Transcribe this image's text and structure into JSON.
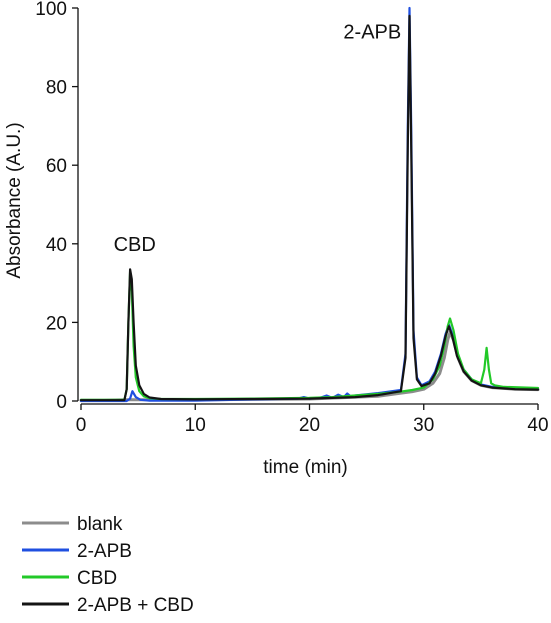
{
  "chart_data": {
    "type": "line",
    "xlabel": "time (min)",
    "ylabel": "Absorbance (A.U.)",
    "xlim": [
      0,
      40
    ],
    "ylim": [
      0,
      100
    ],
    "xticks": [
      0,
      10,
      20,
      30,
      40
    ],
    "yticks": [
      0,
      20,
      40,
      60,
      80,
      100
    ],
    "grid": false,
    "legend_position": "bottom-left",
    "annotations": [
      {
        "text": "CBD",
        "x": 4.7,
        "y": 40
      },
      {
        "text": "2-APB",
        "x": 25.5,
        "y": 94
      }
    ],
    "series": [
      {
        "name": "blank",
        "color": "#8c8c8c",
        "x": [
          0,
          2,
          4,
          6,
          10,
          20,
          26,
          28,
          29,
          30,
          30.8,
          31.4,
          31.8,
          32.1,
          32.3,
          32.6,
          33,
          33.5,
          34.2,
          35,
          36,
          38,
          40
        ],
        "y": [
          0.2,
          0.2,
          0.3,
          0.3,
          0.3,
          0.5,
          1.2,
          2.0,
          2.4,
          3.0,
          4.5,
          7.0,
          11.0,
          15.5,
          17.5,
          15.5,
          11.0,
          7.5,
          5.2,
          4.0,
          3.4,
          3.0,
          2.9
        ]
      },
      {
        "name": "2-APB",
        "color": "#1f4fe0",
        "x": [
          0,
          4,
          4.3,
          4.5,
          4.8,
          5.2,
          6,
          10,
          15,
          19,
          19.5,
          20,
          21,
          21.5,
          22,
          22.5,
          23,
          23.3,
          23.6,
          24,
          26,
          28,
          28.4,
          28.6,
          28.75,
          28.9,
          29.1,
          29.4,
          29.8,
          30.5,
          31,
          31.5,
          31.9,
          32.2,
          32.5,
          32.9,
          33.5,
          34.2,
          35,
          36,
          38,
          40
        ],
        "y": [
          0,
          0,
          0.6,
          2.5,
          1.0,
          0.3,
          0.1,
          0.1,
          0.4,
          0.6,
          1.0,
          0.6,
          0.9,
          1.4,
          0.8,
          1.6,
          1.0,
          1.9,
          1.2,
          1.4,
          2.0,
          2.8,
          12.0,
          70.0,
          100.0,
          70.0,
          18.0,
          6.0,
          4.0,
          5.0,
          7.5,
          12.0,
          17.0,
          19.5,
          17.0,
          12.0,
          8.0,
          5.5,
          4.2,
          3.6,
          3.2,
          3.1
        ]
      },
      {
        "name": "CBD",
        "color": "#22c928",
        "x": [
          0,
          3.8,
          4.0,
          4.15,
          4.3,
          4.45,
          4.6,
          4.8,
          5.1,
          5.5,
          6,
          7,
          10,
          15,
          20,
          22,
          24,
          26,
          28,
          29,
          30,
          30.8,
          31.4,
          31.8,
          32.1,
          32.3,
          32.6,
          33,
          33.5,
          34.2,
          35,
          35.3,
          35.5,
          35.7,
          35.9,
          36.2,
          37,
          40
        ],
        "y": [
          0.3,
          0.3,
          3.0,
          20.0,
          33.0,
          28.0,
          14.0,
          6.0,
          2.5,
          1.2,
          0.7,
          0.5,
          0.5,
          0.6,
          0.8,
          1.0,
          1.4,
          1.8,
          2.4,
          2.8,
          3.4,
          5.5,
          9.0,
          14.0,
          19.0,
          21.0,
          18.0,
          12.0,
          8.0,
          5.5,
          4.5,
          8.0,
          13.5,
          8.0,
          4.5,
          4.0,
          3.6,
          3.3
        ]
      },
      {
        "name": "2-APB + CBD",
        "color": "#141414",
        "x": [
          0,
          3.8,
          4.0,
          4.15,
          4.3,
          4.45,
          4.6,
          4.8,
          5.1,
          5.5,
          6,
          7,
          10,
          15,
          20,
          24,
          26,
          28,
          28.4,
          28.6,
          28.75,
          28.9,
          29.1,
          29.4,
          29.8,
          30.5,
          31,
          31.5,
          31.9,
          32.2,
          32.5,
          32.9,
          33.5,
          34.2,
          35,
          36,
          38,
          40
        ],
        "y": [
          0.2,
          0.2,
          3.0,
          20.0,
          33.5,
          31.0,
          20.0,
          9.0,
          4.0,
          1.8,
          0.9,
          0.5,
          0.4,
          0.5,
          0.6,
          1.0,
          1.5,
          2.5,
          11.0,
          65.0,
          98.0,
          65.0,
          16.0,
          5.5,
          3.8,
          4.5,
          7.0,
          11.5,
          16.5,
          19.0,
          16.5,
          11.5,
          7.5,
          5.2,
          4.0,
          3.4,
          3.0,
          2.9
        ]
      }
    ]
  }
}
